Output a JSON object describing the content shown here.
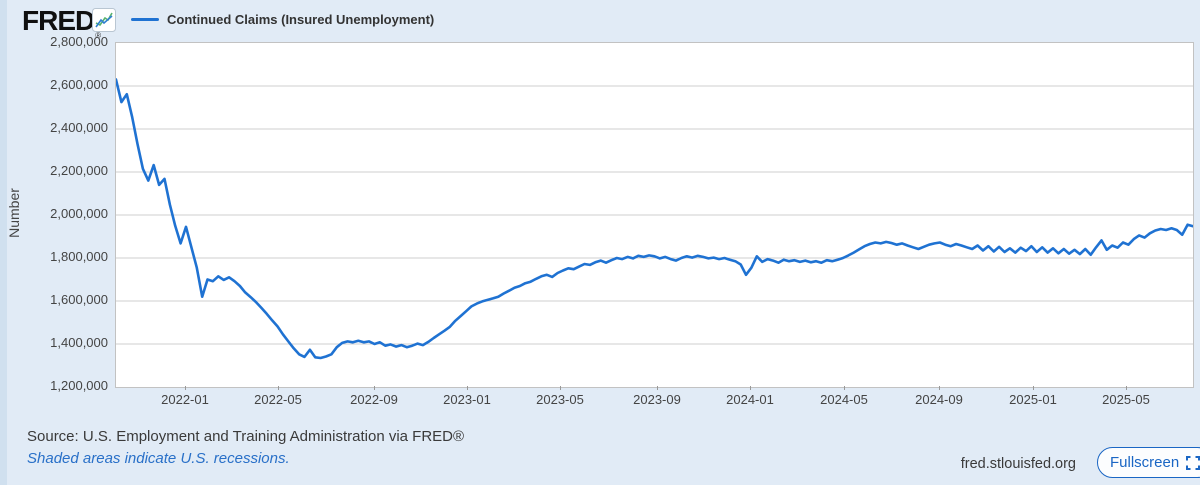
{
  "header": {
    "logo_text": "FRED",
    "registered_mark": "®",
    "legend_label": "Continued Claims (Insured Unemployment)"
  },
  "y_axis": {
    "title": "Number",
    "tick_labels": [
      "2,800,000",
      "2,600,000",
      "2,400,000",
      "2,200,000",
      "2,000,000",
      "1,800,000",
      "1,600,000",
      "1,400,000",
      "1,200,000"
    ]
  },
  "x_axis": {
    "tick_labels": [
      "2022-01",
      "2022-05",
      "2022-09",
      "2023-01",
      "2023-05",
      "2023-09",
      "2024-01",
      "2024-05",
      "2024-09",
      "2025-01",
      "2025-05"
    ]
  },
  "footer": {
    "source": "Source: U.S. Employment and Training Administration via FRED®",
    "note": "Shaded areas indicate U.S. recessions.",
    "site": "fred.stlouisfed.org",
    "fullscreen_label": "Fullscreen"
  },
  "colors": {
    "line": "#1f72d2",
    "accent_blue": "#1a66c4",
    "note_blue": "#2970c8",
    "background": "#e1ebf6",
    "grid": "#cfcfcf"
  },
  "chart_data": {
    "type": "line",
    "title": "Continued Claims (Insured Unemployment)",
    "ylabel": "Number",
    "ylim": [
      1200000,
      2800000
    ],
    "y_gridline_step": 200000,
    "frequency": "weekly",
    "x_start": "2021-10",
    "x_end": "2025-08",
    "x_tick_labels": [
      "2022-01",
      "2022-05",
      "2022-09",
      "2023-01",
      "2023-05",
      "2023-09",
      "2024-01",
      "2024-05",
      "2024-09",
      "2025-01",
      "2025-05"
    ],
    "x_tick_positions": [
      13.0,
      30.3,
      48.1,
      65.4,
      82.7,
      100.6,
      117.9,
      135.3,
      153.1,
      170.4,
      187.7
    ],
    "legend_position": "top",
    "grid": true,
    "series": [
      {
        "name": "Continued Claims (Insured Unemployment)",
        "values": [
          2630000,
          2525000,
          2562000,
          2455000,
          2330000,
          2215000,
          2160000,
          2232000,
          2140000,
          2168000,
          2048000,
          1950000,
          1868000,
          1945000,
          1850000,
          1755000,
          1620000,
          1700000,
          1692000,
          1715000,
          1698000,
          1710000,
          1692000,
          1670000,
          1640000,
          1618000,
          1595000,
          1568000,
          1540000,
          1510000,
          1482000,
          1445000,
          1412000,
          1380000,
          1352000,
          1340000,
          1373000,
          1338000,
          1335000,
          1342000,
          1352000,
          1385000,
          1405000,
          1412000,
          1408000,
          1415000,
          1408000,
          1412000,
          1400000,
          1408000,
          1392000,
          1398000,
          1388000,
          1395000,
          1385000,
          1392000,
          1402000,
          1395000,
          1410000,
          1428000,
          1445000,
          1462000,
          1480000,
          1508000,
          1530000,
          1552000,
          1575000,
          1588000,
          1598000,
          1605000,
          1612000,
          1620000,
          1635000,
          1648000,
          1662000,
          1670000,
          1683000,
          1690000,
          1703000,
          1715000,
          1722000,
          1712000,
          1730000,
          1742000,
          1752000,
          1748000,
          1760000,
          1772000,
          1768000,
          1780000,
          1788000,
          1778000,
          1790000,
          1800000,
          1795000,
          1805000,
          1798000,
          1810000,
          1805000,
          1812000,
          1808000,
          1798000,
          1805000,
          1795000,
          1788000,
          1800000,
          1808000,
          1802000,
          1810000,
          1805000,
          1798000,
          1802000,
          1795000,
          1800000,
          1792000,
          1785000,
          1770000,
          1722000,
          1755000,
          1808000,
          1782000,
          1795000,
          1788000,
          1778000,
          1792000,
          1785000,
          1790000,
          1782000,
          1788000,
          1780000,
          1785000,
          1778000,
          1790000,
          1785000,
          1792000,
          1800000,
          1812000,
          1825000,
          1840000,
          1855000,
          1865000,
          1872000,
          1868000,
          1875000,
          1870000,
          1862000,
          1868000,
          1858000,
          1850000,
          1842000,
          1852000,
          1862000,
          1868000,
          1872000,
          1862000,
          1855000,
          1865000,
          1858000,
          1850000,
          1842000,
          1858000,
          1835000,
          1855000,
          1830000,
          1852000,
          1828000,
          1845000,
          1825000,
          1848000,
          1832000,
          1855000,
          1828000,
          1850000,
          1825000,
          1845000,
          1822000,
          1842000,
          1820000,
          1838000,
          1818000,
          1842000,
          1815000,
          1850000,
          1882000,
          1838000,
          1858000,
          1848000,
          1872000,
          1862000,
          1888000,
          1905000,
          1895000,
          1915000,
          1928000,
          1935000,
          1930000,
          1938000,
          1930000,
          1908000,
          1955000,
          1948000
        ]
      }
    ]
  }
}
